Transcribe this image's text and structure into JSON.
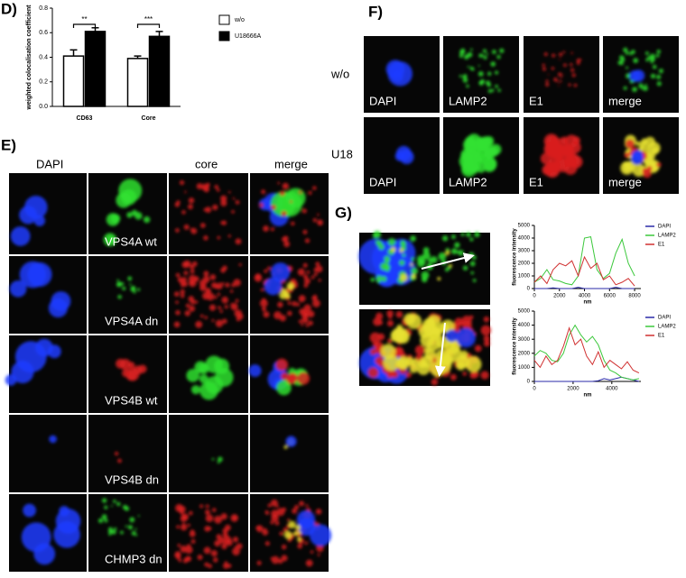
{
  "panels": {
    "D": {
      "label": "D)"
    },
    "E": {
      "label": "E)",
      "columns": [
        "DAPI",
        "core",
        "merge"
      ],
      "rows": [
        "VPS4A wt",
        "VPS4A dn",
        "VPS4B wt",
        "VPS4B dn",
        "CHMP3 dn"
      ]
    },
    "F": {
      "label": "F)",
      "rows": [
        "w/o",
        "U18"
      ],
      "channels": [
        "DAPI",
        "LAMP2",
        "E1",
        "merge"
      ]
    },
    "G": {
      "label": "G)"
    }
  },
  "chart_data": [
    {
      "type": "bar",
      "ylabel": "weighted colocalisation coefficient",
      "categories": [
        "CD63",
        "Core"
      ],
      "series": [
        {
          "name": "w/o",
          "color": "#ffffff",
          "values": [
            0.41,
            0.39
          ],
          "errors": [
            0.05,
            0.02
          ]
        },
        {
          "name": "U18666A",
          "color": "#000000",
          "values": [
            0.61,
            0.57
          ],
          "errors": [
            0.03,
            0.04
          ]
        }
      ],
      "annotations": [
        "**",
        "***"
      ],
      "ylim": [
        0,
        0.8
      ],
      "yticks": [
        {
          "value": 0,
          "label": "0.0"
        },
        {
          "value": 0.2,
          "label": "0.2"
        },
        {
          "value": 0.4,
          "label": "0.4"
        },
        {
          "value": 0.6,
          "label": "0.6"
        },
        {
          "value": 0.8,
          "label": "0.8"
        }
      ]
    },
    {
      "type": "line",
      "ylabel": "fluorescence intensity",
      "xlabel": "nm",
      "x": [
        0,
        500,
        1000,
        1500,
        2000,
        2500,
        3000,
        3500,
        4000,
        4500,
        5000,
        5500,
        6000,
        6500,
        7000,
        7500,
        8000
      ],
      "series": [
        {
          "name": "DAPI",
          "color": "#2a2aa8",
          "values": [
            0,
            0,
            0,
            50,
            0,
            0,
            0,
            100,
            0,
            0,
            0,
            0,
            0,
            100,
            0,
            0,
            0
          ]
        },
        {
          "name": "LAMP2",
          "color": "#3cc83c",
          "values": [
            500,
            800,
            1500,
            700,
            600,
            400,
            300,
            1000,
            4000,
            4100,
            1500,
            800,
            1200,
            2800,
            3900,
            2000,
            1000
          ]
        },
        {
          "name": "E1",
          "color": "#d03030",
          "values": [
            500,
            1000,
            400,
            1500,
            2000,
            1800,
            2200,
            1000,
            2500,
            1600,
            2000,
            700,
            1000,
            300,
            500,
            800,
            200
          ]
        }
      ],
      "xlim": [
        0,
        8500
      ],
      "xticks": [
        0,
        2000,
        4000,
        6000,
        8000
      ],
      "ylim": [
        0,
        5000
      ],
      "yticks": [
        0,
        1000,
        2000,
        3000,
        4000,
        5000
      ]
    },
    {
      "type": "line",
      "ylabel": "fluorescence intensity",
      "xlabel": "nm",
      "x": [
        0,
        300,
        600,
        900,
        1200,
        1500,
        1800,
        2100,
        2400,
        2700,
        3000,
        3300,
        3600,
        3900,
        4200,
        4500,
        4800,
        5100,
        5400
      ],
      "series": [
        {
          "name": "DAPI",
          "color": "#2a2aa8",
          "values": [
            0,
            0,
            0,
            0,
            0,
            0,
            0,
            0,
            0,
            0,
            0,
            50,
            200,
            100,
            200,
            300,
            200,
            100,
            0
          ]
        },
        {
          "name": "LAMP2",
          "color": "#3cc83c",
          "values": [
            1800,
            2200,
            2000,
            1500,
            1400,
            2000,
            3300,
            4000,
            3300,
            2800,
            3200,
            2600,
            1500,
            800,
            600,
            300,
            200,
            100,
            200
          ]
        },
        {
          "name": "E1",
          "color": "#d03030",
          "values": [
            1500,
            1000,
            1800,
            1200,
            1500,
            2500,
            3800,
            2600,
            3000,
            1800,
            1200,
            2100,
            1000,
            1500,
            1200,
            900,
            1400,
            800,
            600
          ]
        }
      ],
      "xlim": [
        0,
        5500
      ],
      "xticks": [
        0,
        2000,
        4000
      ],
      "ylim": [
        0,
        5000
      ],
      "yticks": [
        0,
        1000,
        2000,
        3000,
        4000,
        5000
      ]
    }
  ]
}
